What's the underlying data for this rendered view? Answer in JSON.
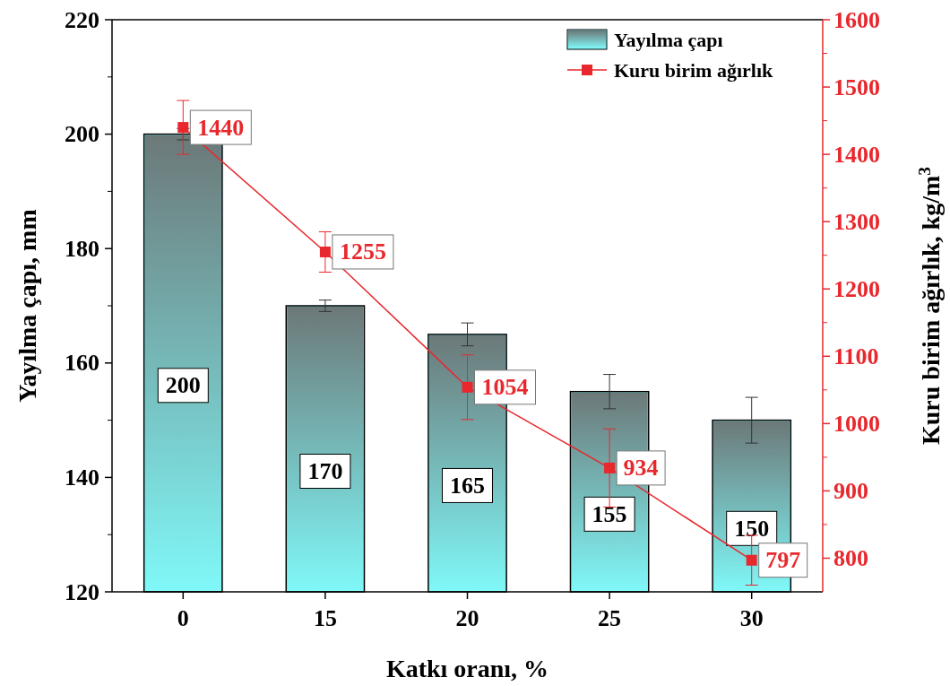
{
  "chart_data": {
    "type": "bar",
    "xlabel": "Katkı oranı, %",
    "ylabel": "Yayılma çapı, mm",
    "y2label": "Kuru birim ağırlık, kg/m$^{3}$",
    "categories": [
      "0",
      "15",
      "20",
      "25",
      "30"
    ],
    "series": [
      {
        "name": "Yayılma çapı",
        "color": "#80f8f8",
        "values": [
          200,
          170,
          165,
          155,
          150
        ],
        "errors": [
          1,
          1,
          2,
          3,
          4
        ]
      },
      {
        "name": "Kuru birim ağırlık",
        "type": "line",
        "axis": "y2",
        "color": "#e8282d",
        "values": [
          1440,
          1255,
          1054,
          934,
          797
        ],
        "errors": [
          40,
          30,
          48,
          58,
          37
        ]
      }
    ],
    "ylim": [
      120,
      220
    ],
    "yticks": [
      120,
      140,
      160,
      180,
      200,
      220
    ],
    "y2lim": [
      750,
      1600
    ],
    "y2ticks": [
      800,
      900,
      1000,
      1100,
      1200,
      1300,
      1400,
      1500,
      1600
    ],
    "data_labels": true,
    "legend": "top right",
    "marker": "square",
    "line_style": "solid",
    "grid": false
  }
}
